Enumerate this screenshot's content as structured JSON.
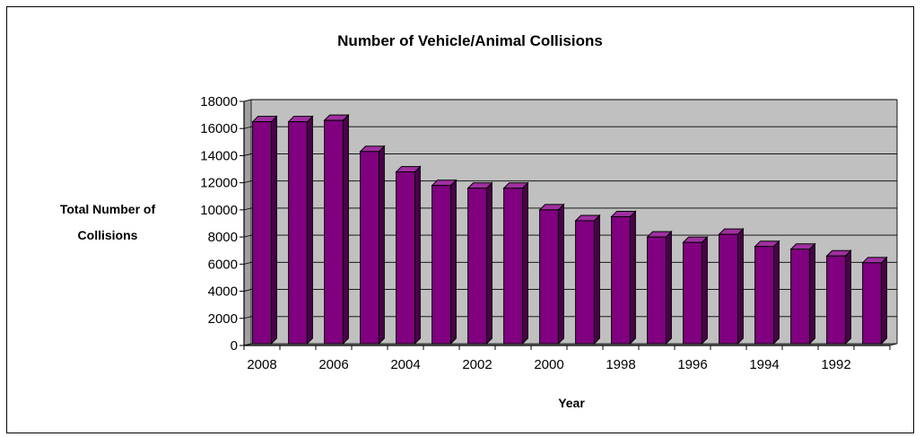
{
  "chart_data": {
    "type": "bar",
    "title": "Number of Vehicle/Animal Collisions",
    "xlabel": "Year",
    "ylabel_lines": [
      "Total Number of",
      "Collisions"
    ],
    "ylim": [
      0,
      18000
    ],
    "ytick_step": 2000,
    "yticks": [
      "0",
      "2000",
      "4000",
      "6000",
      "8000",
      "10000",
      "12000",
      "14000",
      "16000",
      "18000"
    ],
    "categories": [
      "2008",
      "2007",
      "2006",
      "2005",
      "2004",
      "2003",
      "2002",
      "2001",
      "2000",
      "1999",
      "1998",
      "1997",
      "1996",
      "1995",
      "1994",
      "1993",
      "1992",
      "1991"
    ],
    "visible_xtick_labels": [
      "2008",
      "2006",
      "2004",
      "2002",
      "2000",
      "1998",
      "1996",
      "1994",
      "1992"
    ],
    "values": [
      16500,
      16500,
      16600,
      14300,
      12800,
      11800,
      11600,
      11600,
      10000,
      9200,
      9500,
      8000,
      7600,
      8200,
      7300,
      7100,
      6600,
      6100
    ],
    "grid": true,
    "legend": "none",
    "colors": {
      "plot_bg": "#C0C0C0",
      "bar_front": "#800080",
      "bar_top": "#A030A0",
      "bar_side": "#4A004A",
      "grid": "#000000"
    }
  }
}
